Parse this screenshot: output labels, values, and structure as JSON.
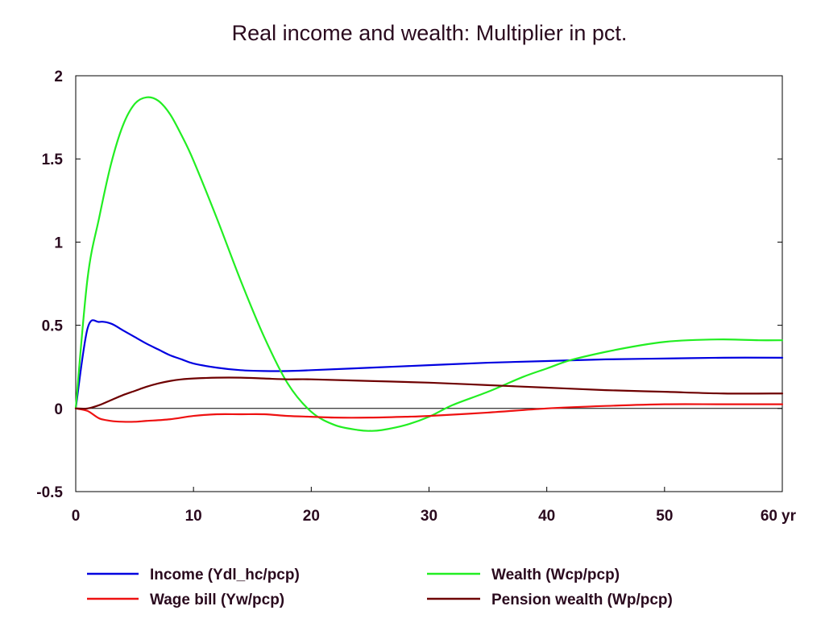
{
  "chart_data": {
    "type": "line",
    "title": "Real income and wealth: Multiplier in pct.",
    "xlabel": "",
    "ylabel": "",
    "x_unit_label": "yr",
    "xlim": [
      0,
      60
    ],
    "ylim": [
      -0.5,
      2
    ],
    "x_ticks": [
      {
        "value": 0,
        "label": "0"
      },
      {
        "value": 10,
        "label": "10"
      },
      {
        "value": 20,
        "label": "20"
      },
      {
        "value": 30,
        "label": "30"
      },
      {
        "value": 40,
        "label": "40"
      },
      {
        "value": 50,
        "label": "50"
      },
      {
        "value": 60,
        "label": "60"
      }
    ],
    "y_ticks": [
      {
        "value": -0.5,
        "label": "-0.5"
      },
      {
        "value": 0,
        "label": "0"
      },
      {
        "value": 0.5,
        "label": "0.5"
      },
      {
        "value": 1,
        "label": "1"
      },
      {
        "value": 1.5,
        "label": "1.5"
      },
      {
        "value": 2,
        "label": "2"
      }
    ],
    "zero_line": true,
    "grid": false,
    "legend_position": "bottom",
    "series": [
      {
        "name": "Income (Ydl_hc/pcp)",
        "color": "#0000e0",
        "x": [
          0,
          1,
          2,
          3,
          4,
          5,
          6,
          7,
          8,
          9,
          10,
          12,
          14,
          16,
          18,
          20,
          25,
          30,
          35,
          40,
          45,
          50,
          55,
          60
        ],
        "y": [
          0,
          0.48,
          0.52,
          0.51,
          0.47,
          0.43,
          0.39,
          0.355,
          0.32,
          0.295,
          0.27,
          0.245,
          0.23,
          0.225,
          0.225,
          0.23,
          0.245,
          0.26,
          0.275,
          0.285,
          0.295,
          0.3,
          0.305,
          0.305
        ]
      },
      {
        "name": "Wealth (Wcp/pcp)",
        "color": "#22ee22",
        "x": [
          0,
          1,
          2,
          3,
          4,
          5,
          6,
          7,
          8,
          9,
          10,
          12,
          14,
          16,
          18,
          20,
          22,
          24,
          25,
          26,
          28,
          30,
          32,
          35,
          38,
          40,
          42,
          45,
          48,
          50,
          52,
          55,
          58,
          60
        ],
        "y": [
          0,
          0.78,
          1.15,
          1.47,
          1.7,
          1.83,
          1.87,
          1.85,
          1.77,
          1.64,
          1.49,
          1.14,
          0.77,
          0.43,
          0.15,
          -0.02,
          -0.1,
          -0.13,
          -0.135,
          -0.13,
          -0.1,
          -0.05,
          0.02,
          0.1,
          0.19,
          0.24,
          0.29,
          0.34,
          0.38,
          0.4,
          0.41,
          0.415,
          0.41,
          0.41
        ]
      },
      {
        "name": "Wage bill (Yw/pcp)",
        "color": "#ee1111",
        "x": [
          0,
          1,
          2,
          3,
          4,
          5,
          6,
          8,
          10,
          12,
          14,
          16,
          18,
          20,
          22,
          25,
          28,
          30,
          35,
          40,
          45,
          50,
          55,
          60
        ],
        "y": [
          0,
          -0.015,
          -0.06,
          -0.075,
          -0.08,
          -0.08,
          -0.075,
          -0.065,
          -0.045,
          -0.035,
          -0.035,
          -0.035,
          -0.045,
          -0.05,
          -0.055,
          -0.055,
          -0.05,
          -0.045,
          -0.025,
          0,
          0.015,
          0.025,
          0.025,
          0.025
        ]
      },
      {
        "name": "Pension wealth (Wp/pcp)",
        "color": "#6e0000",
        "x": [
          0,
          1,
          2,
          3,
          4,
          5,
          6,
          7,
          8,
          9,
          10,
          12,
          14,
          16,
          18,
          20,
          25,
          30,
          35,
          40,
          45,
          50,
          55,
          60
        ],
        "y": [
          0,
          0,
          0.02,
          0.05,
          0.08,
          0.105,
          0.13,
          0.15,
          0.165,
          0.175,
          0.18,
          0.185,
          0.185,
          0.18,
          0.175,
          0.175,
          0.165,
          0.155,
          0.14,
          0.125,
          0.11,
          0.1,
          0.09,
          0.09
        ]
      }
    ]
  }
}
